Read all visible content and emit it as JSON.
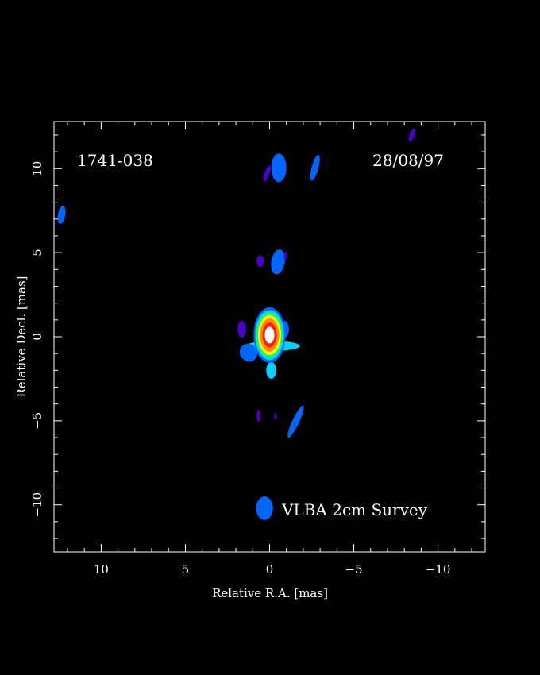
{
  "chart_data": {
    "type": "heatmap",
    "source_name": "1741-038",
    "date": "28/08/97",
    "caption": "VLBA 2cm Survey",
    "xlabel": "Relative R.A. [mas]",
    "ylabel": "Relative Decl. [mas]",
    "xlim": [
      12.8,
      -12.8
    ],
    "ylim": [
      -12.8,
      12.8
    ],
    "xticks": [
      10,
      5,
      0,
      -5,
      -10
    ],
    "yticks": [
      10,
      5,
      0,
      -5,
      -10
    ],
    "xtick_labels": [
      "10",
      "5",
      "0",
      "−5",
      "−10"
    ],
    "ytick_labels": [
      "10",
      "5",
      "0",
      "−5",
      "−10"
    ],
    "background": "#000000",
    "colormap": [
      "#4b00c8",
      "#0066ff",
      "#00d2ff",
      "#00ff7a",
      "#ffff00",
      "#ff8c00",
      "#ff1e1e",
      "#ffffff"
    ],
    "core": {
      "x": 0.0,
      "y": 0.1,
      "semi_major": 1.65,
      "semi_minor": 0.95
    },
    "extended_emission": [
      {
        "x": -0.2,
        "y": -0.55,
        "w": 1.6,
        "h": 0.3,
        "angle": 0,
        "level": 2
      },
      {
        "x": 0.9,
        "y": -0.7,
        "w": 0.7,
        "h": 0.35,
        "angle": -30,
        "level": 2
      },
      {
        "x": -0.1,
        "y": -2.0,
        "w": 0.3,
        "h": 0.5,
        "angle": 0,
        "level": 2
      },
      {
        "x": -0.9,
        "y": 0.45,
        "w": 0.25,
        "h": 0.5,
        "angle": 0,
        "level": 1
      }
    ],
    "components": [
      {
        "x": -0.55,
        "y": 10.05,
        "w": 0.45,
        "h": 0.85,
        "angle": 0,
        "level": 1
      },
      {
        "x": 0.15,
        "y": 9.7,
        "w": 0.15,
        "h": 0.5,
        "angle": 20,
        "level": 0
      },
      {
        "x": -2.7,
        "y": 10.05,
        "w": 0.2,
        "h": 0.8,
        "angle": 15,
        "level": 1
      },
      {
        "x": -8.45,
        "y": 12.0,
        "w": 0.15,
        "h": 0.4,
        "angle": 20,
        "level": 0
      },
      {
        "x": 12.35,
        "y": 7.25,
        "w": 0.22,
        "h": 0.55,
        "angle": 10,
        "level": 1
      },
      {
        "x": -0.5,
        "y": 4.45,
        "w": 0.4,
        "h": 0.75,
        "angle": 10,
        "level": 1
      },
      {
        "x": 0.55,
        "y": 4.5,
        "w": 0.22,
        "h": 0.35,
        "angle": 0,
        "level": 0
      },
      {
        "x": -0.95,
        "y": 4.8,
        "w": 0.1,
        "h": 0.25,
        "angle": 0,
        "level": 0
      },
      {
        "x": 1.65,
        "y": 0.45,
        "w": 0.25,
        "h": 0.5,
        "angle": 0,
        "level": 0
      },
      {
        "x": 1.25,
        "y": -0.95,
        "w": 0.5,
        "h": 0.55,
        "angle": -40,
        "level": 1
      },
      {
        "x": -1.55,
        "y": -5.05,
        "w": 0.2,
        "h": 1.05,
        "angle": 25,
        "level": 1
      },
      {
        "x": 0.65,
        "y": -4.7,
        "w": 0.12,
        "h": 0.35,
        "angle": 0,
        "level": 0
      },
      {
        "x": -0.35,
        "y": -4.75,
        "w": 0.08,
        "h": 0.2,
        "angle": 0,
        "level": 0
      }
    ],
    "beam": {
      "x": 0.3,
      "y": -10.2,
      "w": 0.5,
      "h": 0.7,
      "angle": 0,
      "level": 1
    }
  }
}
